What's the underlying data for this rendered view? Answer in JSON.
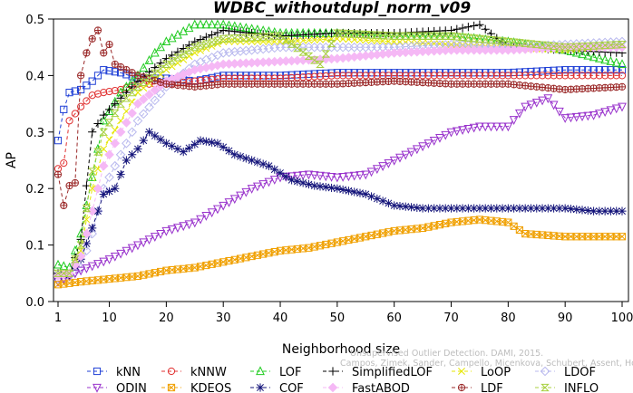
{
  "chart_data": {
    "type": "line",
    "title": "WDBC_withoutdupl_norm_v09",
    "xlabel": "Neighborhood size",
    "ylabel": "AP",
    "xlim": [
      1,
      100
    ],
    "ylim": [
      0,
      0.5
    ],
    "xticks": [
      "1",
      "10",
      "20",
      "30",
      "40",
      "50",
      "60",
      "70",
      "80",
      "90",
      "100"
    ],
    "yticks": [
      "0.0",
      "0.1",
      "0.2",
      "0.3",
      "0.4",
      "0.5"
    ],
    "watermark_lines": [
      "Unsupervised Outlier Detection. DAMI, 2015.",
      "Campos, Zimek, Sander, Campello, Micenkova, Schubert, Assent, Houle"
    ],
    "series": [
      {
        "name": "kNN",
        "color": "#1f3fd6",
        "marker": "square",
        "points": [
          [
            1,
            0.285
          ],
          [
            2,
            0.34
          ],
          [
            3,
            0.37
          ],
          [
            5,
            0.375
          ],
          [
            7,
            0.39
          ],
          [
            9,
            0.41
          ],
          [
            12,
            0.405
          ],
          [
            15,
            0.395
          ],
          [
            20,
            0.395
          ],
          [
            25,
            0.39
          ],
          [
            30,
            0.4
          ],
          [
            40,
            0.4
          ],
          [
            50,
            0.405
          ],
          [
            60,
            0.405
          ],
          [
            70,
            0.405
          ],
          [
            80,
            0.405
          ],
          [
            90,
            0.41
          ],
          [
            100,
            0.41
          ]
        ]
      },
      {
        "name": "kNNW",
        "color": "#e03030",
        "marker": "circle",
        "points": [
          [
            1,
            0.235
          ],
          [
            2,
            0.245
          ],
          [
            3,
            0.32
          ],
          [
            5,
            0.345
          ],
          [
            7,
            0.365
          ],
          [
            9,
            0.37
          ],
          [
            12,
            0.375
          ],
          [
            15,
            0.385
          ],
          [
            20,
            0.385
          ],
          [
            25,
            0.39
          ],
          [
            30,
            0.395
          ],
          [
            40,
            0.395
          ],
          [
            50,
            0.4
          ],
          [
            60,
            0.4
          ],
          [
            70,
            0.4
          ],
          [
            80,
            0.4
          ],
          [
            90,
            0.4
          ],
          [
            100,
            0.4
          ]
        ]
      },
      {
        "name": "LOF",
        "color": "#22cc22",
        "marker": "triangle",
        "points": [
          [
            1,
            0.065
          ],
          [
            3,
            0.06
          ],
          [
            5,
            0.12
          ],
          [
            7,
            0.22
          ],
          [
            9,
            0.32
          ],
          [
            12,
            0.37
          ],
          [
            15,
            0.4
          ],
          [
            18,
            0.44
          ],
          [
            20,
            0.46
          ],
          [
            25,
            0.49
          ],
          [
            30,
            0.49
          ],
          [
            40,
            0.475
          ],
          [
            50,
            0.475
          ],
          [
            60,
            0.47
          ],
          [
            70,
            0.47
          ],
          [
            80,
            0.46
          ],
          [
            90,
            0.445
          ],
          [
            100,
            0.42
          ]
        ]
      },
      {
        "name": "SimplifiedLOF",
        "color": "#000000",
        "marker": "plus",
        "points": [
          [
            1,
            0.05
          ],
          [
            3,
            0.045
          ],
          [
            5,
            0.11
          ],
          [
            7,
            0.3
          ],
          [
            9,
            0.33
          ],
          [
            12,
            0.36
          ],
          [
            15,
            0.39
          ],
          [
            20,
            0.43
          ],
          [
            25,
            0.46
          ],
          [
            30,
            0.48
          ],
          [
            40,
            0.47
          ],
          [
            50,
            0.475
          ],
          [
            60,
            0.475
          ],
          [
            70,
            0.48
          ],
          [
            75,
            0.49
          ],
          [
            80,
            0.45
          ],
          [
            90,
            0.445
          ],
          [
            100,
            0.44
          ]
        ]
      },
      {
        "name": "LoOP",
        "color": "#e6e600",
        "marker": "x",
        "points": [
          [
            1,
            0.045
          ],
          [
            3,
            0.05
          ],
          [
            5,
            0.09
          ],
          [
            7,
            0.2
          ],
          [
            9,
            0.27
          ],
          [
            12,
            0.32
          ],
          [
            15,
            0.37
          ],
          [
            20,
            0.41
          ],
          [
            25,
            0.44
          ],
          [
            30,
            0.46
          ],
          [
            40,
            0.46
          ],
          [
            50,
            0.465
          ],
          [
            60,
            0.46
          ],
          [
            70,
            0.455
          ],
          [
            80,
            0.45
          ],
          [
            90,
            0.445
          ],
          [
            100,
            0.455
          ]
        ]
      },
      {
        "name": "LDOF",
        "color": "#b8b8ee",
        "marker": "diamond",
        "points": [
          [
            1,
            0.04
          ],
          [
            3,
            0.045
          ],
          [
            5,
            0.06
          ],
          [
            7,
            0.12
          ],
          [
            9,
            0.2
          ],
          [
            12,
            0.26
          ],
          [
            15,
            0.32
          ],
          [
            20,
            0.38
          ],
          [
            25,
            0.42
          ],
          [
            30,
            0.44
          ],
          [
            40,
            0.45
          ],
          [
            50,
            0.45
          ],
          [
            60,
            0.45
          ],
          [
            70,
            0.455
          ],
          [
            80,
            0.45
          ],
          [
            90,
            0.455
          ],
          [
            100,
            0.46
          ]
        ]
      },
      {
        "name": "ODIN",
        "color": "#9933cc",
        "marker": "triangle-down",
        "points": [
          [
            1,
            0.035
          ],
          [
            5,
            0.055
          ],
          [
            10,
            0.075
          ],
          [
            15,
            0.1
          ],
          [
            20,
            0.125
          ],
          [
            25,
            0.14
          ],
          [
            30,
            0.17
          ],
          [
            35,
            0.2
          ],
          [
            40,
            0.22
          ],
          [
            45,
            0.225
          ],
          [
            50,
            0.22
          ],
          [
            55,
            0.225
          ],
          [
            60,
            0.25
          ],
          [
            65,
            0.275
          ],
          [
            70,
            0.3
          ],
          [
            75,
            0.31
          ],
          [
            80,
            0.31
          ],
          [
            83,
            0.345
          ],
          [
            87,
            0.36
          ],
          [
            90,
            0.325
          ],
          [
            95,
            0.33
          ],
          [
            100,
            0.345
          ]
        ]
      },
      {
        "name": "KDEOS",
        "color": "#f0a000",
        "marker": "square-x",
        "points": [
          [
            1,
            0.03
          ],
          [
            5,
            0.035
          ],
          [
            10,
            0.04
          ],
          [
            15,
            0.045
          ],
          [
            20,
            0.055
          ],
          [
            25,
            0.06
          ],
          [
            30,
            0.07
          ],
          [
            35,
            0.08
          ],
          [
            40,
            0.09
          ],
          [
            45,
            0.095
          ],
          [
            50,
            0.105
          ],
          [
            55,
            0.115
          ],
          [
            60,
            0.125
          ],
          [
            65,
            0.13
          ],
          [
            70,
            0.14
          ],
          [
            75,
            0.145
          ],
          [
            80,
            0.14
          ],
          [
            83,
            0.12
          ],
          [
            90,
            0.115
          ],
          [
            100,
            0.115
          ]
        ]
      },
      {
        "name": "COF",
        "color": "#14147a",
        "marker": "asterisk",
        "points": [
          [
            1,
            0.045
          ],
          [
            3,
            0.05
          ],
          [
            5,
            0.075
          ],
          [
            7,
            0.13
          ],
          [
            9,
            0.19
          ],
          [
            11,
            0.2
          ],
          [
            13,
            0.25
          ],
          [
            15,
            0.27
          ],
          [
            17,
            0.3
          ],
          [
            20,
            0.28
          ],
          [
            23,
            0.265
          ],
          [
            26,
            0.285
          ],
          [
            29,
            0.28
          ],
          [
            32,
            0.26
          ],
          [
            35,
            0.25
          ],
          [
            38,
            0.24
          ],
          [
            42,
            0.215
          ],
          [
            46,
            0.205
          ],
          [
            50,
            0.2
          ],
          [
            55,
            0.19
          ],
          [
            60,
            0.17
          ],
          [
            65,
            0.165
          ],
          [
            70,
            0.165
          ],
          [
            75,
            0.165
          ],
          [
            80,
            0.165
          ],
          [
            85,
            0.165
          ],
          [
            90,
            0.165
          ],
          [
            95,
            0.16
          ],
          [
            100,
            0.16
          ]
        ]
      },
      {
        "name": "FastABOD",
        "color": "#f5b8f5",
        "marker": "diamond-filled",
        "points": [
          [
            1,
            0.045
          ],
          [
            3,
            0.05
          ],
          [
            5,
            0.08
          ],
          [
            7,
            0.16
          ],
          [
            9,
            0.24
          ],
          [
            12,
            0.3
          ],
          [
            15,
            0.35
          ],
          [
            20,
            0.39
          ],
          [
            25,
            0.41
          ],
          [
            30,
            0.42
          ],
          [
            40,
            0.425
          ],
          [
            50,
            0.43
          ],
          [
            60,
            0.44
          ],
          [
            70,
            0.445
          ],
          [
            80,
            0.445
          ],
          [
            90,
            0.45
          ],
          [
            100,
            0.45
          ]
        ]
      },
      {
        "name": "LDF",
        "color": "#9a2828",
        "marker": "circle-plus",
        "points": [
          [
            1,
            0.225
          ],
          [
            2,
            0.17
          ],
          [
            3,
            0.205
          ],
          [
            4,
            0.21
          ],
          [
            5,
            0.4
          ],
          [
            6,
            0.44
          ],
          [
            7,
            0.465
          ],
          [
            8,
            0.48
          ],
          [
            9,
            0.44
          ],
          [
            10,
            0.455
          ],
          [
            11,
            0.42
          ],
          [
            13,
            0.41
          ],
          [
            15,
            0.4
          ],
          [
            20,
            0.385
          ],
          [
            25,
            0.38
          ],
          [
            30,
            0.385
          ],
          [
            40,
            0.385
          ],
          [
            50,
            0.385
          ],
          [
            60,
            0.39
          ],
          [
            70,
            0.385
          ],
          [
            80,
            0.385
          ],
          [
            90,
            0.375
          ],
          [
            100,
            0.38
          ]
        ]
      },
      {
        "name": "INFLO",
        "color": "#a8d040",
        "marker": "hourglass",
        "points": [
          [
            1,
            0.05
          ],
          [
            3,
            0.05
          ],
          [
            5,
            0.1
          ],
          [
            7,
            0.23
          ],
          [
            9,
            0.3
          ],
          [
            12,
            0.35
          ],
          [
            15,
            0.38
          ],
          [
            20,
            0.42
          ],
          [
            25,
            0.45
          ],
          [
            30,
            0.465
          ],
          [
            40,
            0.47
          ],
          [
            47,
            0.42
          ],
          [
            50,
            0.475
          ],
          [
            60,
            0.47
          ],
          [
            70,
            0.47
          ],
          [
            80,
            0.46
          ],
          [
            90,
            0.45
          ],
          [
            100,
            0.455
          ]
        ]
      }
    ]
  }
}
